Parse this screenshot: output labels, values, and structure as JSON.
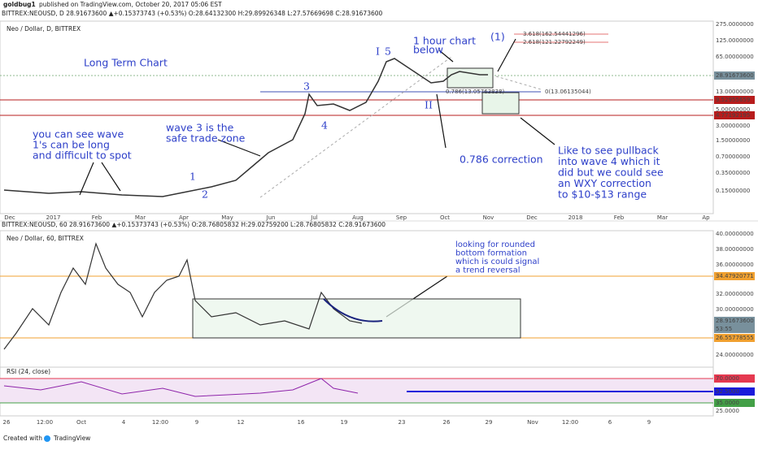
{
  "header": {
    "author": "goldbug1",
    "published": "published on TradingView.com, October 20, 2017 05:06 EST"
  },
  "daily": {
    "info": "BITTREX:NEOUSD, D 28.91673600 ▲+0.15373743 (+0.53%) O:28.64132300 H:29.89926348 L:27.57669698 C:28.91673600",
    "legend": "Neo / Dollar, D, BITTREX",
    "price_axis": [
      "275.0000000",
      "125.0000000",
      "65.00000000",
      "13.00000000",
      "5.00000000",
      "3.00000000",
      "1.50000000",
      "0.70000000",
      "0.35000000",
      "0.15000000"
    ],
    "price_tags": [
      "28.91673600",
      "9.52955659",
      "4.77192195"
    ],
    "time_axis": [
      "Dec",
      "2017",
      "Feb",
      "Mar",
      "Apr",
      "May",
      "Jun",
      "Jul",
      "Aug",
      "Sep",
      "Oct",
      "Nov",
      "Dec",
      "2018",
      "Feb",
      "Mar",
      "Ap"
    ],
    "annotations": {
      "long_term": "Long Term Chart",
      "wave1": [
        "you can see wave",
        "1's can be long",
        "and difficult to spot"
      ],
      "wave3": [
        "wave 3 is the",
        "safe trade zone"
      ],
      "w1": "1",
      "w2": "2",
      "w3": "3",
      "w4": "4",
      "wI": "I",
      "w5": "5",
      "wII": "II",
      "hour": [
        "1 hour chart",
        "below"
      ],
      "paren1": "(1)",
      "fib3618": "3.618(162.54441296)",
      "fib2618": "2.618(121.22792249)",
      "fib0": "0(13.06135044)",
      "fib786": "0.786(13.05763838)",
      "correction": "0.786 correction",
      "pullback": [
        "Like to see pullback",
        "into wave 4 which it",
        "did but we could see",
        "an WXY correction",
        "to $10-$13 range"
      ]
    }
  },
  "hourly": {
    "info": "BITTREX:NEOUSD, 60 28.91673600 ▲+0.15373743 (+0.53%) O:28.76805832 H:29.02759200 L:28.76805832 C:28.91673600",
    "legend": "Neo / Dollar, 60, BITTREX",
    "price_axis": [
      "40.00000000",
      "38.00000000",
      "36.00000000",
      "32.00000000",
      "30.00000000",
      "24.00000000"
    ],
    "price_tags": [
      "34.47920771",
      "28.91673600",
      "53:55",
      "26.55778555"
    ],
    "annotation": [
      "looking for rounded",
      "bottom formation",
      "which is could signal",
      "a trend reversal"
    ],
    "rsi_label": "RSI (24, close)",
    "rsi_tags": [
      "70.0000",
      "52.5000",
      "35.0000"
    ],
    "rsi_axis": "25.0000",
    "time_axis": [
      "26",
      "12:00",
      "Oct",
      "4",
      "12:00",
      "9",
      "12",
      "16",
      "19",
      "23",
      "26",
      "29",
      "Nov",
      "12:00",
      "6",
      "9"
    ]
  },
  "footer": {
    "created": "Created with",
    "brand": "TradingView"
  }
}
